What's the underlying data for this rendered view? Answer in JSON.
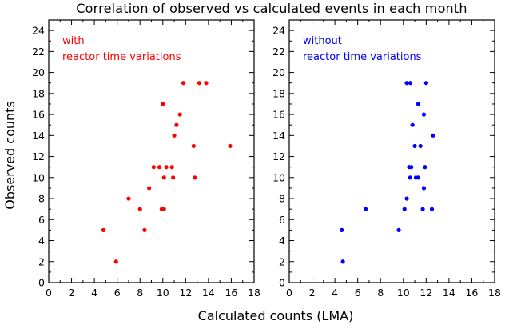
{
  "figure": {
    "title": "Correlation of observed vs calculated  events in each month",
    "xlabel": "Calculated counts (LMA)",
    "ylabel": "Observed counts"
  },
  "chart_data": [
    {
      "type": "scatter",
      "annotation": [
        "with",
        "reactor time variations"
      ],
      "color": "#ff0000",
      "xlim": [
        0,
        18
      ],
      "ylim": [
        0,
        25
      ],
      "xticks": [
        0,
        2,
        4,
        6,
        8,
        10,
        12,
        14,
        16,
        18
      ],
      "yticks": [
        0,
        2,
        4,
        6,
        8,
        10,
        12,
        14,
        16,
        18,
        20,
        22,
        24
      ],
      "grid": false,
      "points": [
        {
          "x": 4.8,
          "y": 5
        },
        {
          "x": 5.9,
          "y": 2
        },
        {
          "x": 7.0,
          "y": 8
        },
        {
          "x": 8.0,
          "y": 7
        },
        {
          "x": 8.4,
          "y": 5
        },
        {
          "x": 8.8,
          "y": 9
        },
        {
          "x": 9.2,
          "y": 11
        },
        {
          "x": 9.7,
          "y": 11
        },
        {
          "x": 9.9,
          "y": 7
        },
        {
          "x": 10.1,
          "y": 7
        },
        {
          "x": 10.1,
          "y": 10
        },
        {
          "x": 10.0,
          "y": 17
        },
        {
          "x": 10.3,
          "y": 11
        },
        {
          "x": 10.8,
          "y": 11
        },
        {
          "x": 10.9,
          "y": 10
        },
        {
          "x": 11.0,
          "y": 14
        },
        {
          "x": 11.2,
          "y": 15
        },
        {
          "x": 11.5,
          "y": 16
        },
        {
          "x": 11.8,
          "y": 19
        },
        {
          "x": 12.7,
          "y": 13
        },
        {
          "x": 12.8,
          "y": 10
        },
        {
          "x": 13.2,
          "y": 19
        },
        {
          "x": 13.8,
          "y": 19
        },
        {
          "x": 15.9,
          "y": 13
        }
      ]
    },
    {
      "type": "scatter",
      "annotation": [
        "without",
        "reactor time variations"
      ],
      "color": "#0000ff",
      "xlim": [
        0,
        18
      ],
      "ylim": [
        0,
        25
      ],
      "xticks": [
        0,
        2,
        4,
        6,
        8,
        10,
        12,
        14,
        16,
        18
      ],
      "yticks": [
        0,
        2,
        4,
        6,
        8,
        10,
        12,
        14,
        16,
        18,
        20,
        22,
        24
      ],
      "grid": false,
      "points": [
        {
          "x": 4.6,
          "y": 5
        },
        {
          "x": 4.7,
          "y": 2
        },
        {
          "x": 6.7,
          "y": 7
        },
        {
          "x": 9.6,
          "y": 5
        },
        {
          "x": 10.1,
          "y": 7
        },
        {
          "x": 10.3,
          "y": 8
        },
        {
          "x": 10.3,
          "y": 19
        },
        {
          "x": 10.5,
          "y": 11
        },
        {
          "x": 10.6,
          "y": 10
        },
        {
          "x": 10.6,
          "y": 19
        },
        {
          "x": 10.7,
          "y": 11
        },
        {
          "x": 10.8,
          "y": 15
        },
        {
          "x": 11.0,
          "y": 13
        },
        {
          "x": 11.1,
          "y": 10
        },
        {
          "x": 11.3,
          "y": 10
        },
        {
          "x": 11.3,
          "y": 17
        },
        {
          "x": 11.5,
          "y": 13
        },
        {
          "x": 11.7,
          "y": 7
        },
        {
          "x": 11.8,
          "y": 9
        },
        {
          "x": 11.8,
          "y": 16
        },
        {
          "x": 11.9,
          "y": 11
        },
        {
          "x": 12.0,
          "y": 19
        },
        {
          "x": 12.5,
          "y": 7
        },
        {
          "x": 12.6,
          "y": 14
        }
      ]
    }
  ]
}
